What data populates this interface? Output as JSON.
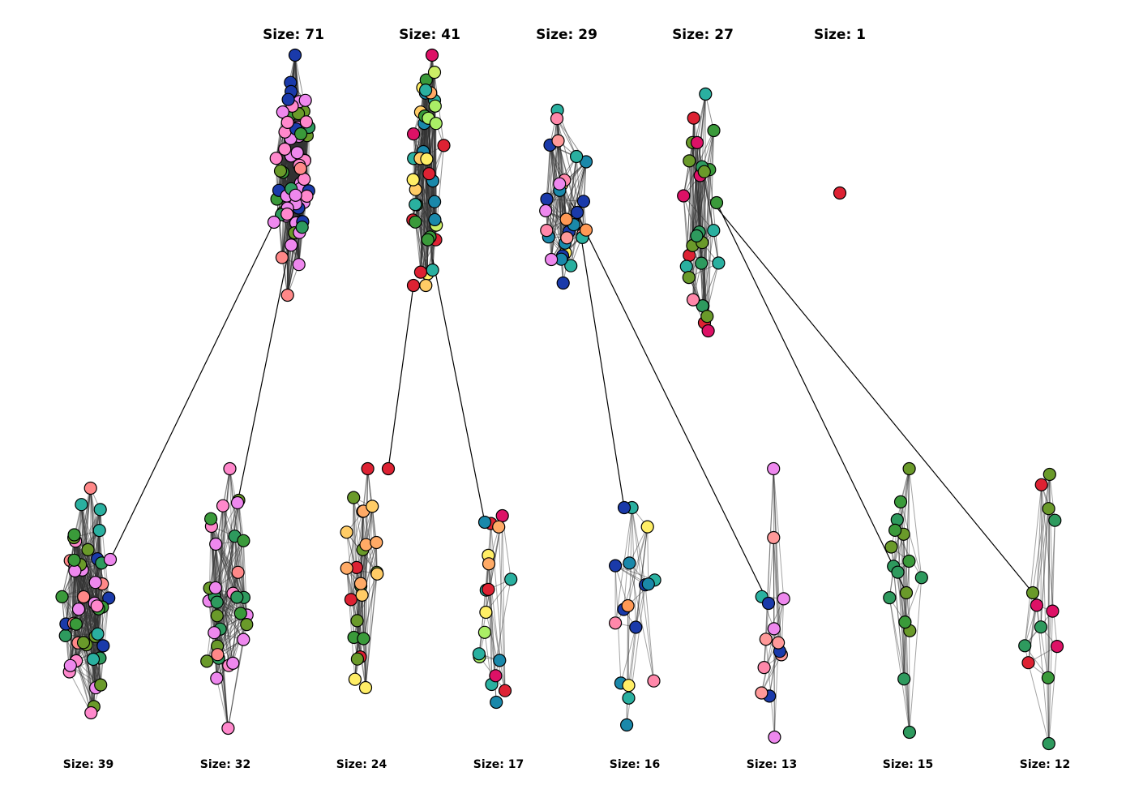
{
  "top_clusters": [
    {
      "id": "t1",
      "label": "Size: 71",
      "colors": [
        "#ee88ee",
        "#ee88ee",
        "#ee88ee",
        "#ff88cc",
        "#ee88ee",
        "#2e9a5e",
        "#3a9a3a",
        "#ff8888",
        "#ee88ee",
        "#ff88cc",
        "#6a9a2a",
        "#1a3aaa"
      ]
    },
    {
      "id": "t2",
      "label": "Size: 41",
      "colors": [
        "#dd2233",
        "#ffaa66",
        "#ffcc66",
        "#ffee66",
        "#ccee66",
        "#dd1166",
        "#3a9a3a",
        "#1a88aa",
        "#2ab0a0",
        "#aaee66"
      ]
    },
    {
      "id": "t3",
      "label": "Size: 29",
      "colors": [
        "#1a3aaa",
        "#1a88aa",
        "#ff88aa",
        "#ff9999",
        "#ee88ee",
        "#2ab0a0",
        "#ffee66",
        "#ff9955",
        "#1a3aaa",
        "#1a3aaa"
      ]
    },
    {
      "id": "t4",
      "label": "Size: 27",
      "colors": [
        "#3a9a3a",
        "#6a9a2a",
        "#2e9a5e",
        "#ff88aa",
        "#dd2233",
        "#6a9a2a",
        "#2ab0a0",
        "#dd1166"
      ]
    },
    {
      "id": "t5",
      "label": "Size: 1",
      "colors": [
        "#dd2233"
      ]
    }
  ],
  "bottom_clusters": [
    {
      "id": "b1",
      "label": "Size: 39",
      "colors": [
        "#ee88ee",
        "#ff88cc",
        "#3a9a3a",
        "#2e9a5e",
        "#ff8888",
        "#1a3aaa",
        "#2ab0a0",
        "#6a9a2a"
      ]
    },
    {
      "id": "b2",
      "label": "Size: 32",
      "colors": [
        "#ee88ee",
        "#ff88cc",
        "#ff8888",
        "#3a9a3a",
        "#2e9a5e",
        "#6a9a2a"
      ]
    },
    {
      "id": "b3",
      "label": "Size: 24",
      "colors": [
        "#dd2233",
        "#ffaa66",
        "#ffee66",
        "#3a9a3a",
        "#dd1166",
        "#6a9a2a",
        "#ffcc66"
      ]
    },
    {
      "id": "b4",
      "label": "Size: 17",
      "colors": [
        "#1a88aa",
        "#dd1166",
        "#ffee66",
        "#aaee66",
        "#ffaa66",
        "#2ab0a0",
        "#dd2233"
      ]
    },
    {
      "id": "b5",
      "label": "Size: 16",
      "colors": [
        "#1a3aaa",
        "#1a88aa",
        "#2ab0a0",
        "#ff88aa",
        "#ff9955",
        "#ffee66"
      ]
    },
    {
      "id": "b6",
      "label": "Size: 13",
      "colors": [
        "#1a3aaa",
        "#ff88aa",
        "#2ab0a0",
        "#ff9999",
        "#ee88ee"
      ]
    },
    {
      "id": "b7",
      "label": "Size: 15",
      "colors": [
        "#6a9a2a",
        "#2e9a5e",
        "#3a9a3a",
        "#ff88aa"
      ]
    },
    {
      "id": "b8",
      "label": "Size: 12",
      "colors": [
        "#6a9a2a",
        "#dd2233",
        "#3a9a3a",
        "#2e9a5e",
        "#dd1166"
      ]
    }
  ],
  "links": [
    {
      "from": "t1",
      "to": "b1"
    },
    {
      "from": "t1",
      "to": "b2"
    },
    {
      "from": "t2",
      "to": "b3"
    },
    {
      "from": "t2",
      "to": "b4"
    },
    {
      "from": "t3",
      "to": "b5"
    },
    {
      "from": "t3",
      "to": "b6"
    },
    {
      "from": "t4",
      "to": "b7"
    },
    {
      "from": "t4",
      "to": "b8"
    }
  ],
  "node_stroke": "#000000",
  "edge_color": "#333333"
}
